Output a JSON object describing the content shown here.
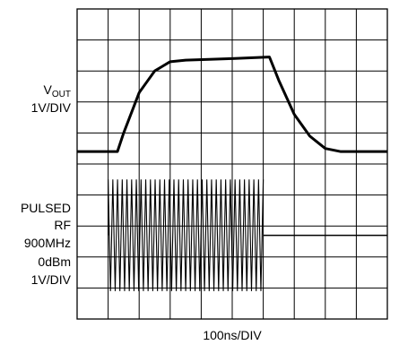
{
  "chart_data": {
    "type": "line",
    "grid": true,
    "xlabel": "100ns/DIV",
    "x_divisions": 10,
    "y_divisions": 10,
    "channels": [
      {
        "name_main": "V",
        "name_sub": "OUT",
        "scale": "1V/DIV",
        "points_div": [
          [
            0,
            0
          ],
          [
            1.3,
            0
          ],
          [
            1.5,
            0.6
          ],
          [
            2,
            1.9
          ],
          [
            2.5,
            2.6
          ],
          [
            3,
            2.9
          ],
          [
            3.5,
            2.95
          ],
          [
            5,
            3.0
          ],
          [
            6.2,
            3.05
          ],
          [
            6.5,
            2.3
          ],
          [
            7,
            1.2
          ],
          [
            7.5,
            0.5
          ],
          [
            8,
            0.1
          ],
          [
            8.5,
            0
          ],
          [
            10,
            0
          ]
        ]
      },
      {
        "label_lines": [
          "PULSED",
          "RF",
          "900MHz",
          "0dBm",
          "1V/DIV"
        ],
        "burst_start_div": 1.0,
        "burst_end_div": 6.0,
        "amplitude_div": 1.8,
        "cycles": 33
      }
    ]
  }
}
